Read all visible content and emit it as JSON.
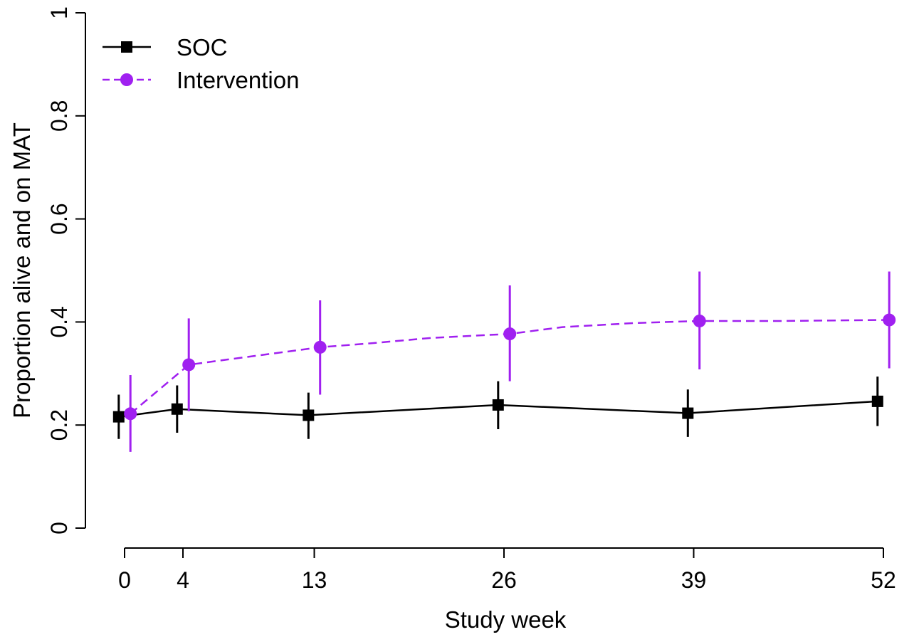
{
  "chart_data": {
    "type": "line",
    "xlabel": "Study week",
    "ylabel": "Proportion alive and on MAT",
    "x": [
      0,
      4,
      13,
      26,
      39,
      52
    ],
    "x_ticks": [
      "0",
      "4",
      "13",
      "26",
      "39",
      "52"
    ],
    "y_ticks": [
      "0",
      "0.2",
      "0.4",
      "0.6",
      "0.8",
      "1"
    ],
    "ylim": [
      0,
      1
    ],
    "grid": false,
    "legend_position": "top-left",
    "series": [
      {
        "name": "SOC",
        "color": "#000000",
        "marker": "square",
        "line_style": "solid",
        "points": [
          {
            "x": -0.4,
            "y": 0.216,
            "lo": 0.173,
            "hi": 0.259
          },
          {
            "x": 3.6,
            "y": 0.231,
            "lo": 0.185,
            "hi": 0.277
          },
          {
            "x": 12.6,
            "y": 0.219,
            "lo": 0.173,
            "hi": 0.263
          },
          {
            "x": 25.6,
            "y": 0.239,
            "lo": 0.192,
            "hi": 0.285
          },
          {
            "x": 38.6,
            "y": 0.223,
            "lo": 0.177,
            "hi": 0.269
          },
          {
            "x": 51.6,
            "y": 0.246,
            "lo": 0.198,
            "hi": 0.294
          }
        ],
        "line": [
          {
            "x": -0.4,
            "y": 0.216
          },
          {
            "x": 3.6,
            "y": 0.231
          },
          {
            "x": 12.6,
            "y": 0.219
          },
          {
            "x": 25.6,
            "y": 0.239
          },
          {
            "x": 38.6,
            "y": 0.223
          },
          {
            "x": 51.6,
            "y": 0.246
          }
        ]
      },
      {
        "name": "Intervention",
        "color": "#a020f0",
        "marker": "circle",
        "line_style": "dashed",
        "points": [
          {
            "x": 0.4,
            "y": 0.222,
            "lo": 0.148,
            "hi": 0.297
          },
          {
            "x": 4.4,
            "y": 0.317,
            "lo": 0.227,
            "hi": 0.407
          },
          {
            "x": 13.4,
            "y": 0.351,
            "lo": 0.259,
            "hi": 0.442
          },
          {
            "x": 26.4,
            "y": 0.377,
            "lo": 0.285,
            "hi": 0.471
          },
          {
            "x": 39.4,
            "y": 0.402,
            "lo": 0.308,
            "hi": 0.498
          },
          {
            "x": 52.4,
            "y": 0.404,
            "lo": 0.31,
            "hi": 0.498
          }
        ],
        "line": [
          {
            "x": 0.4,
            "y": 0.222
          },
          {
            "x": 4.4,
            "y": 0.317
          },
          {
            "x": 7.0,
            "y": 0.327
          },
          {
            "x": 13.4,
            "y": 0.351
          },
          {
            "x": 17.0,
            "y": 0.359
          },
          {
            "x": 21.0,
            "y": 0.369
          },
          {
            "x": 26.4,
            "y": 0.377
          },
          {
            "x": 30.0,
            "y": 0.39
          },
          {
            "x": 35.0,
            "y": 0.398
          },
          {
            "x": 39.4,
            "y": 0.402
          },
          {
            "x": 45.0,
            "y": 0.402
          },
          {
            "x": 52.4,
            "y": 0.404
          }
        ]
      }
    ]
  }
}
